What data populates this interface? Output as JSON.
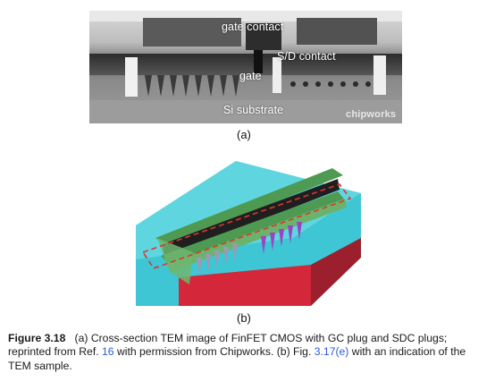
{
  "panel_a": {
    "labels": {
      "gate_contact": "gate contact",
      "sd_contact": "S/D contact",
      "gate": "gate",
      "substrate": "Si substrate"
    },
    "watermark": "chipworks",
    "sub_caption": "(a)"
  },
  "panel_b": {
    "sub_caption": "(b)"
  },
  "caption": {
    "label": "Figure 3.18",
    "text_part1": "(a) Cross-section TEM image of FinFET CMOS with GC plug and SDC plugs; reprinted from Ref.",
    "ref_1": "16",
    "text_part2": "with permission from Chipworks. (b) Fig.",
    "ref_2": "3.17(e)",
    "text_part3": "with an indication of the TEM sample."
  },
  "colors": {
    "tem_gray": "#9a9a9a",
    "block_cyan": "#3ec6d4",
    "substrate_red": "#d4283a",
    "gate_green": "#4e9a52",
    "fin_purple": "#9a44c2",
    "dashed_outline": "#e0342f",
    "reference_link": "#2a5bd7"
  }
}
